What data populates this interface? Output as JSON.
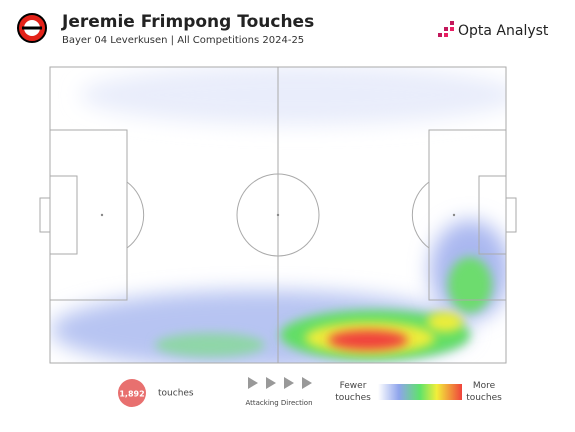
{
  "header": {
    "title": "Jeremie Frimpong Touches",
    "subtitle": "Bayer 04 Leverkusen | All Competitions 2024-25",
    "brand": "Opta Analyst"
  },
  "stats": {
    "touches": "1,892",
    "touches_label": "touches"
  },
  "direction": "Attacking Direction",
  "legend": {
    "low": "Fewer touches",
    "high": "More touches"
  }
}
